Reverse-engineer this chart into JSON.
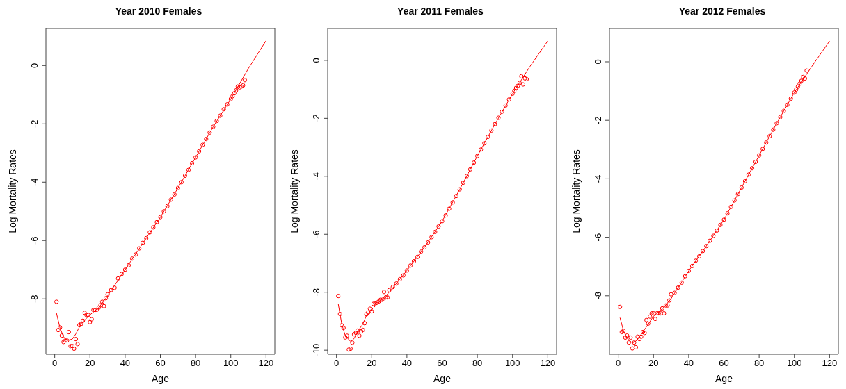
{
  "chart_data": [
    {
      "type": "scatter",
      "title": "Year 2010 Females",
      "xlabel": "Age",
      "ylabel": "Log Mortality Rates",
      "xlim": [
        -5,
        125
      ],
      "ylim": [
        -9.9,
        1.27
      ],
      "xticks": [
        0,
        20,
        40,
        60,
        80,
        100,
        120
      ],
      "yticks": [
        -8,
        -6,
        -4,
        -2,
        0
      ],
      "marker": "circle",
      "series": [
        {
          "type": "scatter",
          "color": "#ff0000",
          "x": [
            1,
            2,
            3,
            4,
            5,
            6,
            7,
            8,
            9,
            10,
            11,
            12,
            13,
            14,
            15,
            16,
            17,
            18,
            19,
            20,
            21,
            22,
            23,
            24,
            25,
            26,
            27,
            28,
            29,
            30,
            32,
            34,
            36,
            38,
            40,
            42,
            44,
            46,
            48,
            50,
            52,
            54,
            56,
            58,
            60,
            62,
            64,
            66,
            68,
            70,
            72,
            74,
            76,
            78,
            80,
            82,
            84,
            86,
            88,
            90,
            92,
            94,
            96,
            98,
            100,
            101,
            102,
            103,
            104,
            105,
            106,
            107,
            108
          ],
          "values": [
            -8.1,
            -9.07,
            -8.98,
            -9.26,
            -9.48,
            -9.43,
            -9.43,
            -9.14,
            -9.62,
            -9.62,
            -9.71,
            -9.38,
            -9.55,
            -8.9,
            -8.86,
            -8.75,
            -8.48,
            -8.55,
            -8.55,
            -8.8,
            -8.7,
            -8.38,
            -8.38,
            -8.37,
            -8.3,
            -8.22,
            -8.1,
            -8.25,
            -7.98,
            -7.85,
            -7.7,
            -7.62,
            -7.3,
            -7.15,
            -7.0,
            -6.85,
            -6.62,
            -6.48,
            -6.27,
            -6.08,
            -5.92,
            -5.72,
            -5.55,
            -5.37,
            -5.2,
            -5.0,
            -4.82,
            -4.6,
            -4.42,
            -4.2,
            -4.0,
            -3.78,
            -3.58,
            -3.35,
            -3.15,
            -2.94,
            -2.72,
            -2.52,
            -2.3,
            -2.1,
            -1.9,
            -1.72,
            -1.5,
            -1.33,
            -1.15,
            -1.05,
            -0.95,
            -0.85,
            -0.72,
            -0.75,
            -0.72,
            -0.68,
            -0.5
          ]
        },
        {
          "type": "line",
          "marker": "none",
          "color": "#ff0000",
          "x": [
            1,
            3,
            5,
            7,
            10,
            12,
            15,
            20,
            25,
            30,
            40,
            50,
            60,
            70,
            80,
            90,
            100,
            110,
            120
          ],
          "values": [
            -8.49,
            -9.0,
            -9.3,
            -9.43,
            -9.38,
            -9.2,
            -8.85,
            -8.55,
            -8.3,
            -7.9,
            -7.0,
            -6.1,
            -5.2,
            -4.2,
            -3.15,
            -2.1,
            -1.15,
            -0.1,
            0.85
          ]
        }
      ]
    },
    {
      "type": "scatter",
      "title": "Year 2011 Females",
      "xlabel": "Age",
      "ylabel": "Log Mortality Rates",
      "xlim": [
        -5,
        125
      ],
      "ylim": [
        -10.14,
        1.1
      ],
      "xticks": [
        0,
        20,
        40,
        60,
        80,
        100,
        120
      ],
      "yticks": [
        -10,
        -8,
        -6,
        -4,
        -2,
        0
      ],
      "marker": "circle",
      "series": [
        {
          "type": "scatter",
          "color": "#ff0000",
          "x": [
            1,
            2,
            3,
            4,
            5,
            6,
            7,
            8,
            9,
            10,
            11,
            12,
            13,
            14,
            15,
            16,
            17,
            18,
            19,
            20,
            21,
            22,
            23,
            24,
            25,
            26,
            27,
            28,
            29,
            30,
            32,
            34,
            36,
            38,
            40,
            42,
            44,
            46,
            48,
            50,
            52,
            54,
            56,
            58,
            60,
            62,
            64,
            66,
            68,
            70,
            72,
            74,
            76,
            78,
            80,
            82,
            84,
            86,
            88,
            90,
            92,
            94,
            96,
            98,
            100,
            101,
            102,
            103,
            104,
            105,
            106,
            107,
            108
          ],
          "values": [
            -8.13,
            -8.75,
            -9.14,
            -9.23,
            -9.56,
            -9.5,
            -9.98,
            -9.95,
            -9.74,
            -9.45,
            -9.4,
            -9.32,
            -9.5,
            -9.35,
            -9.3,
            -9.07,
            -8.76,
            -8.7,
            -8.57,
            -8.66,
            -8.4,
            -8.38,
            -8.36,
            -8.32,
            -8.26,
            -8.26,
            -7.99,
            -8.18,
            -8.18,
            -7.93,
            -7.82,
            -7.7,
            -7.55,
            -7.42,
            -7.25,
            -7.08,
            -6.93,
            -6.78,
            -6.6,
            -6.45,
            -6.28,
            -6.1,
            -5.92,
            -5.73,
            -5.55,
            -5.35,
            -5.12,
            -4.9,
            -4.68,
            -4.45,
            -4.22,
            -3.99,
            -3.76,
            -3.53,
            -3.3,
            -3.08,
            -2.86,
            -2.64,
            -2.42,
            -2.2,
            -1.98,
            -1.77,
            -1.56,
            -1.35,
            -1.15,
            -1.05,
            -0.95,
            -0.88,
            -0.78,
            -0.55,
            -0.83,
            -0.62,
            -0.65
          ]
        },
        {
          "type": "line",
          "marker": "none",
          "color": "#ff0000",
          "x": [
            1,
            3,
            5,
            8,
            10,
            12,
            15,
            17,
            20,
            25,
            30,
            40,
            50,
            60,
            70,
            80,
            90,
            100,
            110,
            120
          ],
          "values": [
            -8.4,
            -9.1,
            -9.5,
            -9.7,
            -9.6,
            -9.35,
            -9.1,
            -8.8,
            -8.6,
            -8.3,
            -8.0,
            -7.25,
            -6.45,
            -5.55,
            -4.45,
            -3.3,
            -2.2,
            -1.15,
            -0.2,
            0.67
          ]
        }
      ]
    },
    {
      "type": "scatter",
      "title": "Year 2012 Females",
      "xlabel": "Age",
      "ylabel": "Log Mortality Rates",
      "xlim": [
        -5,
        125
      ],
      "ylim": [
        -10.0,
        1.14
      ],
      "xticks": [
        0,
        20,
        40,
        60,
        80,
        100,
        120
      ],
      "yticks": [
        -8,
        -6,
        -4,
        -2,
        0
      ],
      "marker": "circle",
      "series": [
        {
          "type": "scatter",
          "color": "#ff0000",
          "x": [
            1,
            2,
            3,
            4,
            5,
            6,
            7,
            8,
            9,
            10,
            11,
            12,
            13,
            14,
            15,
            16,
            17,
            18,
            19,
            20,
            21,
            22,
            23,
            24,
            25,
            26,
            27,
            28,
            29,
            30,
            32,
            34,
            36,
            38,
            40,
            42,
            44,
            46,
            48,
            50,
            52,
            54,
            56,
            58,
            60,
            62,
            64,
            66,
            68,
            70,
            72,
            74,
            76,
            78,
            80,
            82,
            84,
            86,
            88,
            90,
            92,
            94,
            96,
            98,
            100,
            101,
            102,
            103,
            104,
            105,
            106,
            107
          ],
          "values": [
            -8.38,
            -9.24,
            -9.2,
            -9.43,
            -9.36,
            -9.6,
            -9.43,
            -9.8,
            -9.6,
            -9.76,
            -9.4,
            -9.48,
            -9.4,
            -9.24,
            -9.27,
            -8.83,
            -8.95,
            -8.71,
            -8.6,
            -8.6,
            -8.79,
            -8.6,
            -8.6,
            -8.6,
            -8.43,
            -8.6,
            -8.33,
            -8.33,
            -8.16,
            -7.95,
            -7.9,
            -7.72,
            -7.55,
            -7.33,
            -7.15,
            -6.98,
            -6.8,
            -6.65,
            -6.47,
            -6.3,
            -6.12,
            -5.95,
            -5.77,
            -5.58,
            -5.4,
            -5.18,
            -4.96,
            -4.74,
            -4.52,
            -4.3,
            -4.08,
            -3.86,
            -3.64,
            -3.42,
            -3.2,
            -2.98,
            -2.76,
            -2.54,
            -2.32,
            -2.1,
            -1.89,
            -1.68,
            -1.47,
            -1.26,
            -1.05,
            -0.95,
            -0.85,
            -0.75,
            -0.65,
            -0.52,
            -0.57,
            -0.3
          ]
        },
        {
          "type": "line",
          "marker": "none",
          "color": "#ff0000",
          "x": [
            1,
            3,
            5,
            8,
            10,
            12,
            15,
            20,
            25,
            30,
            40,
            50,
            60,
            70,
            80,
            90,
            100,
            110,
            120
          ],
          "values": [
            -8.75,
            -9.2,
            -9.45,
            -9.62,
            -9.55,
            -9.4,
            -9.15,
            -8.7,
            -8.45,
            -8.1,
            -7.15,
            -6.3,
            -5.4,
            -4.3,
            -3.2,
            -2.1,
            -1.05,
            -0.15,
            0.71
          ]
        }
      ]
    }
  ]
}
